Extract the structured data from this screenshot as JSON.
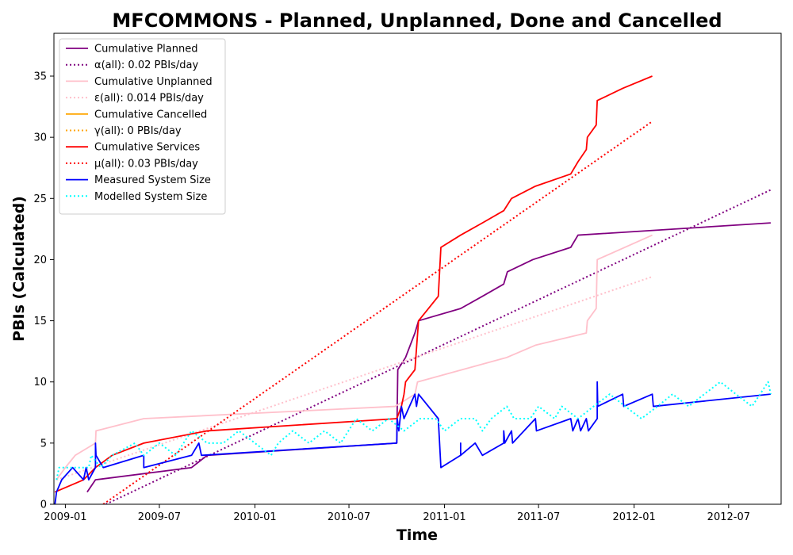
{
  "chart_data": {
    "type": "line",
    "title": "MFCOMMONS - Planned, Unplanned, Done  and Cancelled",
    "xlabel": "Time",
    "ylabel": "PBIs (Calculated)",
    "xlim": [
      "2008-12-10",
      "2012-10-10"
    ],
    "ylim": [
      0,
      38.5
    ],
    "x_ticks": [
      {
        "date": "2009-01-01",
        "label": "2009-01"
      },
      {
        "date": "2009-07-01",
        "label": "2009-07"
      },
      {
        "date": "2010-01-01",
        "label": "2010-01"
      },
      {
        "date": "2010-07-01",
        "label": "2010-07"
      },
      {
        "date": "2011-01-01",
        "label": "2011-01"
      },
      {
        "date": "2011-07-01",
        "label": "2011-07"
      },
      {
        "date": "2012-01-01",
        "label": "2012-01"
      },
      {
        "date": "2012-07-01",
        "label": "2012-07"
      }
    ],
    "y_ticks": [
      0,
      5,
      10,
      15,
      20,
      25,
      30,
      35
    ],
    "grid": false,
    "legend_position": "top-left",
    "series": [
      {
        "name": "Cumulative Planned",
        "color": "#800080",
        "style": "solid",
        "points": [
          [
            "2009-02-12",
            1
          ],
          [
            "2009-02-28",
            2
          ],
          [
            "2009-09-01",
            3
          ],
          [
            "2009-10-01",
            4
          ],
          [
            "2010-10-01",
            5
          ],
          [
            "2010-10-03",
            11
          ],
          [
            "2010-10-18",
            12
          ],
          [
            "2010-11-05",
            14
          ],
          [
            "2010-11-12",
            15
          ],
          [
            "2011-02-01",
            16
          ],
          [
            "2011-03-15",
            17
          ],
          [
            "2011-04-25",
            18
          ],
          [
            "2011-05-02",
            19
          ],
          [
            "2011-06-20",
            20
          ],
          [
            "2011-09-01",
            21
          ],
          [
            "2011-09-15",
            22
          ],
          [
            "2012-09-20",
            23
          ]
        ]
      },
      {
        "name": "α(all): 0.02 PBIs/day",
        "color": "#800080",
        "style": "dotted",
        "points": [
          [
            "2009-03-20",
            0
          ],
          [
            "2012-09-20",
            25.7
          ]
        ]
      },
      {
        "name": "Cumulative Unplanned",
        "color": "#ffc0cb",
        "style": "solid",
        "points": [
          [
            "2008-12-15",
            2
          ],
          [
            "2009-01-01",
            3
          ],
          [
            "2009-01-20",
            4
          ],
          [
            "2009-02-28",
            5
          ],
          [
            "2009-03-01",
            6
          ],
          [
            "2009-06-01",
            7
          ],
          [
            "2010-09-28",
            8
          ],
          [
            "2010-11-05",
            9
          ],
          [
            "2010-11-10",
            10
          ],
          [
            "2011-05-01",
            12
          ],
          [
            "2011-06-25",
            13
          ],
          [
            "2011-10-01",
            14
          ],
          [
            "2011-10-03",
            15
          ],
          [
            "2011-10-20",
            16
          ],
          [
            "2011-10-22",
            20
          ],
          [
            "2012-02-05",
            22
          ]
        ]
      },
      {
        "name": "ε(all): 0.014 PBIs/day",
        "color": "#ffc0cb",
        "style": "dotted",
        "points": [
          [
            "2008-12-15",
            2.0
          ],
          [
            "2012-02-05",
            18.6
          ]
        ]
      },
      {
        "name": "Cumulative Cancelled",
        "color": "#ffa500",
        "style": "solid",
        "points": []
      },
      {
        "name": "γ(all): 0 PBIs/day",
        "color": "#ffa500",
        "style": "dotted",
        "points": []
      },
      {
        "name": "Cumulative Services",
        "color": "#ff0000",
        "style": "solid",
        "points": [
          [
            "2008-12-12",
            1
          ],
          [
            "2009-02-05",
            2
          ],
          [
            "2009-02-28",
            3
          ],
          [
            "2009-04-01",
            4
          ],
          [
            "2009-06-01",
            5
          ],
          [
            "2009-10-01",
            6
          ],
          [
            "2010-10-01",
            7
          ],
          [
            "2010-10-10",
            8
          ],
          [
            "2010-10-15",
            9
          ],
          [
            "2010-10-18",
            10
          ],
          [
            "2010-11-05",
            11
          ],
          [
            "2010-11-12",
            15
          ],
          [
            "2010-12-01",
            16
          ],
          [
            "2010-12-20",
            17
          ],
          [
            "2010-12-25",
            21
          ],
          [
            "2011-02-01",
            22
          ],
          [
            "2011-03-15",
            23
          ],
          [
            "2011-04-25",
            24
          ],
          [
            "2011-05-10",
            25
          ],
          [
            "2011-06-25",
            26
          ],
          [
            "2011-09-01",
            27
          ],
          [
            "2011-09-15",
            28
          ],
          [
            "2011-10-01",
            29
          ],
          [
            "2011-10-03",
            30
          ],
          [
            "2011-10-20",
            31
          ],
          [
            "2011-10-22",
            33
          ],
          [
            "2011-12-10",
            34
          ],
          [
            "2012-02-05",
            35
          ]
        ]
      },
      {
        "name": "μ(all): 0.03 PBIs/day",
        "color": "#ff0000",
        "style": "dotted",
        "points": [
          [
            "2009-03-15",
            0
          ],
          [
            "2012-02-05",
            31.3
          ]
        ]
      },
      {
        "name": "Measured System Size",
        "color": "#0000ff",
        "style": "solid",
        "points": [
          [
            "2008-12-12",
            0
          ],
          [
            "2008-12-15",
            1
          ],
          [
            "2008-12-25",
            2
          ],
          [
            "2009-01-15",
            3
          ],
          [
            "2009-02-05",
            2
          ],
          [
            "2009-02-10",
            3
          ],
          [
            "2009-02-15",
            2
          ],
          [
            "2009-02-28",
            3
          ],
          [
            "2009-02-28",
            5
          ],
          [
            "2009-03-01",
            4
          ],
          [
            "2009-03-15",
            3
          ],
          [
            "2009-06-01",
            4
          ],
          [
            "2009-06-01",
            3
          ],
          [
            "2009-09-01",
            4
          ],
          [
            "2009-09-15",
            5
          ],
          [
            "2009-09-20",
            4
          ],
          [
            "2010-10-01",
            5
          ],
          [
            "2010-10-02",
            7
          ],
          [
            "2010-10-05",
            6
          ],
          [
            "2010-10-10",
            8
          ],
          [
            "2010-10-15",
            7
          ],
          [
            "2010-11-05",
            9
          ],
          [
            "2010-11-08",
            8
          ],
          [
            "2010-11-12",
            9
          ],
          [
            "2010-12-20",
            7
          ],
          [
            "2010-12-25",
            3
          ],
          [
            "2011-02-01",
            4
          ],
          [
            "2011-02-01",
            5
          ],
          [
            "2011-02-01",
            4
          ],
          [
            "2011-03-01",
            5
          ],
          [
            "2011-03-15",
            4
          ],
          [
            "2011-04-25",
            5
          ],
          [
            "2011-04-25",
            6
          ],
          [
            "2011-04-27",
            5
          ],
          [
            "2011-05-10",
            6
          ],
          [
            "2011-05-12",
            5
          ],
          [
            "2011-06-25",
            7
          ],
          [
            "2011-06-27",
            6
          ],
          [
            "2011-09-01",
            7
          ],
          [
            "2011-09-05",
            6
          ],
          [
            "2011-09-15",
            7
          ],
          [
            "2011-09-20",
            6
          ],
          [
            "2011-10-01",
            7
          ],
          [
            "2011-10-05",
            6
          ],
          [
            "2011-10-22",
            7
          ],
          [
            "2011-10-22",
            10
          ],
          [
            "2011-10-23",
            8
          ],
          [
            "2011-12-10",
            9
          ],
          [
            "2011-12-12",
            8
          ],
          [
            "2012-02-05",
            9
          ],
          [
            "2012-02-07",
            8
          ],
          [
            "2012-09-20",
            9
          ]
        ]
      },
      {
        "name": "Modelled System Size",
        "color": "#00ffff",
        "style": "dotted",
        "points": [
          [
            "2008-12-15",
            2
          ],
          [
            "2008-12-20",
            3
          ],
          [
            "2009-02-15",
            3
          ],
          [
            "2009-02-20",
            4
          ],
          [
            "2009-03-10",
            3
          ],
          [
            "2009-04-01",
            4
          ],
          [
            "2009-05-15",
            5
          ],
          [
            "2009-06-01",
            4
          ],
          [
            "2009-07-01",
            5
          ],
          [
            "2009-08-01",
            4
          ],
          [
            "2009-09-01",
            6
          ],
          [
            "2009-10-01",
            5
          ],
          [
            "2009-11-01",
            5
          ],
          [
            "2009-12-01",
            6
          ],
          [
            "2010-01-01",
            5
          ],
          [
            "2010-02-01",
            4
          ],
          [
            "2010-02-15",
            5
          ],
          [
            "2010-03-15",
            6
          ],
          [
            "2010-04-15",
            5
          ],
          [
            "2010-05-15",
            6
          ],
          [
            "2010-06-15",
            5
          ],
          [
            "2010-07-15",
            7
          ],
          [
            "2010-08-15",
            6
          ],
          [
            "2010-09-15",
            7
          ],
          [
            "2010-10-15",
            6
          ],
          [
            "2010-11-15",
            7
          ],
          [
            "2010-12-15",
            7
          ],
          [
            "2011-01-01",
            6
          ],
          [
            "2011-02-01",
            7
          ],
          [
            "2011-03-01",
            7
          ],
          [
            "2011-03-15",
            6
          ],
          [
            "2011-04-01",
            7
          ],
          [
            "2011-05-01",
            8
          ],
          [
            "2011-05-15",
            7
          ],
          [
            "2011-06-15",
            7
          ],
          [
            "2011-07-01",
            8
          ],
          [
            "2011-08-01",
            7
          ],
          [
            "2011-08-15",
            8
          ],
          [
            "2011-09-15",
            7
          ],
          [
            "2011-10-15",
            8
          ],
          [
            "2011-11-15",
            9
          ],
          [
            "2011-12-15",
            8
          ],
          [
            "2012-01-15",
            7
          ],
          [
            "2012-02-15",
            8
          ],
          [
            "2012-03-15",
            9
          ],
          [
            "2012-04-15",
            8
          ],
          [
            "2012-05-15",
            9
          ],
          [
            "2012-06-15",
            10
          ],
          [
            "2012-07-15",
            9
          ],
          [
            "2012-08-15",
            8
          ],
          [
            "2012-09-15",
            10
          ],
          [
            "2012-09-20",
            9
          ]
        ]
      }
    ]
  }
}
